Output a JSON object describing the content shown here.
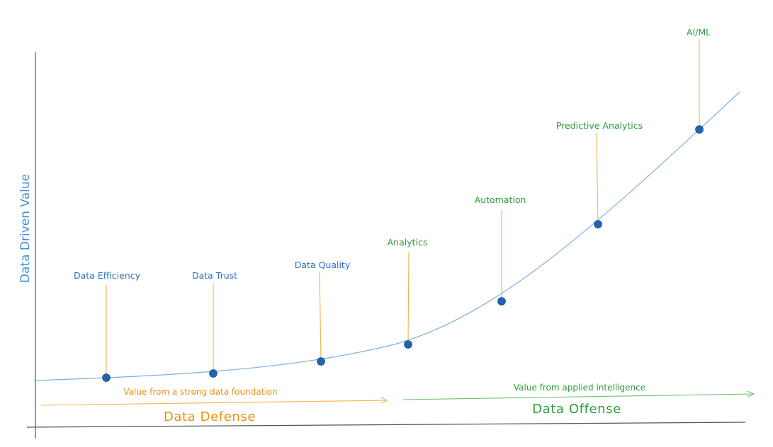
{
  "y_axis_label": "Data Driven Value",
  "milestones": [
    {
      "label": "Data Efficiency",
      "group": "defense"
    },
    {
      "label": "Data Trust",
      "group": "defense"
    },
    {
      "label": "Data Quality",
      "group": "defense"
    },
    {
      "label": "Analytics",
      "group": "offense"
    },
    {
      "label": "Automation",
      "group": "offense"
    },
    {
      "label": "Predictive Analytics",
      "group": "offense"
    },
    {
      "label": "AI/ML",
      "group": "offense"
    }
  ],
  "defense": {
    "subtitle": "Value from a strong data foundation",
    "title": "Data Defense"
  },
  "offense": {
    "subtitle": "Value from applied intelligence",
    "title": "Data Offense"
  },
  "colors": {
    "curve": "#7fb0de",
    "dot": "#1f64b4",
    "leader": "#f5b04a",
    "defense": "#ee8e12",
    "offense": "#2e9b3a",
    "defense_label": "#2a6fc0",
    "axis": "#555555",
    "offense_arrow": "#6cc06c"
  }
}
